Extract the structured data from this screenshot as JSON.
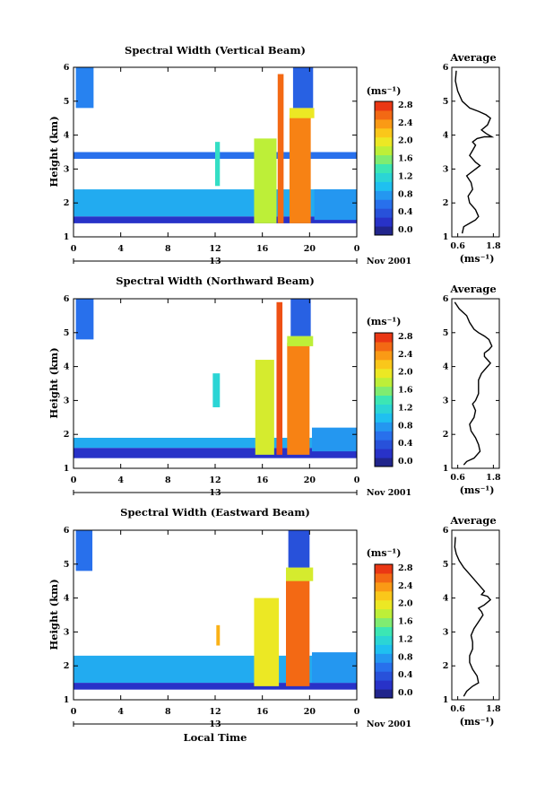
{
  "figure": {
    "time_axis_label": "Local Time",
    "date_tick": "13",
    "date_suffix": "Nov 2001",
    "panels": [
      {
        "title": "Spectral Width (Vertical Beam)",
        "avg_title": "Average"
      },
      {
        "title": "Spectral Width (Northward Beam)",
        "avg_title": "Average"
      },
      {
        "title": "Spectral Width (Eastward Beam)",
        "avg_title": "Average"
      }
    ]
  },
  "chart_data": [
    {
      "type": "heatmap",
      "title": "Spectral Width (Vertical Beam)",
      "xlabel": "",
      "ylabel": "Height (km)",
      "x_ticks": [
        "0",
        "4",
        "8",
        "12",
        "16",
        "20",
        "0"
      ],
      "y_ticks": [
        "1",
        "2",
        "3",
        "4",
        "5",
        "6"
      ],
      "xlim": [
        0,
        24
      ],
      "ylim": [
        1,
        6
      ],
      "colorbar": {
        "unit": "(ms⁻¹)",
        "ticks": [
          "0.0",
          "0.4",
          "0.8",
          "1.2",
          "1.6",
          "2.0",
          "2.4",
          "2.8"
        ],
        "range": [
          0.0,
          3.0
        ],
        "colormap": "jet"
      },
      "regions": [
        {
          "t0": 0,
          "t1": 24,
          "h0": 1.6,
          "h1": 2.4,
          "value": 1.0
        },
        {
          "t0": 0,
          "t1": 24,
          "h0": 1.4,
          "h1": 1.6,
          "value": 0.3
        },
        {
          "t0": 0,
          "t1": 24,
          "h0": 3.3,
          "h1": 3.5,
          "value": 0.7
        },
        {
          "t0": 0.2,
          "t1": 1.7,
          "h0": 4.8,
          "h1": 6.0,
          "value": 0.8
        },
        {
          "t0": 12,
          "t1": 12.4,
          "h0": 2.5,
          "h1": 3.8,
          "value": 1.4
        },
        {
          "t0": 15.3,
          "t1": 17.2,
          "h0": 1.4,
          "h1": 3.9,
          "value": 1.9
        },
        {
          "t0": 17.3,
          "t1": 17.8,
          "h0": 1.4,
          "h1": 5.8,
          "value": 2.7
        },
        {
          "t0": 18.3,
          "t1": 20.1,
          "h0": 1.4,
          "h1": 4.6,
          "value": 2.6
        },
        {
          "t0": 18.3,
          "t1": 20.4,
          "h0": 4.5,
          "h1": 4.8,
          "value": 2.1
        },
        {
          "t0": 18.6,
          "t1": 20.3,
          "h0": 4.8,
          "h1": 6.0,
          "value": 0.6
        },
        {
          "t0": 20.4,
          "t1": 24,
          "h0": 1.5,
          "h1": 2.4,
          "value": 0.9
        }
      ]
    },
    {
      "type": "line",
      "title": "Average",
      "xlabel": "(ms⁻¹)",
      "x_ticks": [
        "0.6",
        "1.8"
      ],
      "xlim": [
        0.4,
        2.0
      ],
      "y_ticks": [
        "1",
        "2",
        "3",
        "4",
        "5",
        "6"
      ],
      "ylim": [
        1,
        6
      ],
      "series": [
        {
          "x": [
            0.75,
            0.8,
            1.0,
            1.2,
            1.3,
            1.2,
            1.0,
            0.95,
            1.1,
            1.05,
            0.9,
            1.2,
            1.35,
            1.2,
            1.0,
            1.1,
            1.2,
            1.1,
            1.25,
            1.5,
            1.75,
            1.55,
            1.4,
            1.6,
            1.7,
            1.55,
            1.3,
            1.0,
            0.75,
            0.6,
            0.52,
            0.55
          ],
          "y": [
            1.1,
            1.3,
            1.4,
            1.5,
            1.6,
            1.8,
            2.0,
            2.2,
            2.4,
            2.6,
            2.8,
            3.0,
            3.1,
            3.2,
            3.4,
            3.55,
            3.7,
            3.8,
            3.9,
            3.95,
            3.95,
            4.05,
            4.15,
            4.3,
            4.5,
            4.6,
            4.7,
            4.8,
            5.0,
            5.3,
            5.6,
            5.9
          ]
        }
      ]
    },
    {
      "type": "heatmap",
      "title": "Spectral Width (Northward Beam)",
      "xlabel": "",
      "ylabel": "Height (km)",
      "x_ticks": [
        "0",
        "4",
        "8",
        "12",
        "16",
        "20",
        "0"
      ],
      "y_ticks": [
        "1",
        "2",
        "3",
        "4",
        "5",
        "6"
      ],
      "xlim": [
        0,
        24
      ],
      "ylim": [
        1,
        6
      ],
      "colorbar": {
        "unit": "(ms⁻¹)",
        "ticks": [
          "0.0",
          "0.4",
          "0.8",
          "1.2",
          "1.6",
          "2.0",
          "2.4",
          "2.8"
        ],
        "range": [
          0.0,
          3.0
        ],
        "colormap": "jet"
      },
      "regions": [
        {
          "t0": 0,
          "t1": 24,
          "h0": 1.6,
          "h1": 1.9,
          "value": 1.0
        },
        {
          "t0": 0,
          "t1": 24,
          "h0": 1.3,
          "h1": 1.6,
          "value": 0.3
        },
        {
          "t0": 0.2,
          "t1": 1.7,
          "h0": 4.8,
          "h1": 6.0,
          "value": 0.7
        },
        {
          "t0": 11.8,
          "t1": 12.4,
          "h0": 2.8,
          "h1": 3.8,
          "value": 1.3
        },
        {
          "t0": 15.4,
          "t1": 17.0,
          "h0": 1.4,
          "h1": 4.2,
          "value": 2.0
        },
        {
          "t0": 17.2,
          "t1": 17.7,
          "h0": 1.4,
          "h1": 5.9,
          "value": 2.8
        },
        {
          "t0": 18.1,
          "t1": 20.0,
          "h0": 1.4,
          "h1": 4.7,
          "value": 2.6
        },
        {
          "t0": 18.1,
          "t1": 20.3,
          "h0": 4.6,
          "h1": 4.9,
          "value": 1.9
        },
        {
          "t0": 18.4,
          "t1": 20.1,
          "h0": 4.9,
          "h1": 6.0,
          "value": 0.6
        },
        {
          "t0": 20.2,
          "t1": 24,
          "h0": 1.5,
          "h1": 2.2,
          "value": 0.9
        }
      ]
    },
    {
      "type": "line",
      "title": "Average",
      "xlabel": "(ms⁻¹)",
      "x_ticks": [
        "0.6",
        "1.8"
      ],
      "xlim": [
        0.4,
        2.0
      ],
      "y_ticks": [
        "1",
        "2",
        "3",
        "4",
        "5",
        "6"
      ],
      "ylim": [
        1,
        6
      ],
      "series": [
        {
          "x": [
            0.8,
            0.9,
            1.15,
            1.35,
            1.3,
            1.2,
            1.05,
            1.0,
            1.15,
            1.2,
            1.1,
            1.2,
            1.3,
            1.3,
            1.3,
            1.4,
            1.55,
            1.7,
            1.6,
            1.5,
            1.5,
            1.65,
            1.75,
            1.65,
            1.5,
            1.3,
            1.15,
            1.0,
            0.9,
            0.65,
            0.5
          ],
          "y": [
            1.1,
            1.2,
            1.3,
            1.5,
            1.7,
            1.9,
            2.1,
            2.3,
            2.5,
            2.7,
            2.9,
            3.0,
            3.2,
            3.4,
            3.6,
            3.8,
            3.95,
            4.1,
            4.2,
            4.3,
            4.4,
            4.5,
            4.6,
            4.8,
            4.9,
            5.0,
            5.1,
            5.3,
            5.5,
            5.7,
            5.9
          ]
        }
      ]
    },
    {
      "type": "heatmap",
      "title": "Spectral Width (Eastward Beam)",
      "xlabel": "Local Time",
      "ylabel": "Height (km)",
      "x_ticks": [
        "0",
        "4",
        "8",
        "12",
        "16",
        "20",
        "0"
      ],
      "y_ticks": [
        "1",
        "2",
        "3",
        "4",
        "5",
        "6"
      ],
      "xlim": [
        0,
        24
      ],
      "ylim": [
        1,
        6
      ],
      "colorbar": {
        "unit": "(ms⁻¹)",
        "ticks": [
          "0.0",
          "0.4",
          "0.8",
          "1.2",
          "1.6",
          "2.0",
          "2.4",
          "2.8"
        ],
        "range": [
          0.0,
          3.0
        ],
        "colormap": "jet"
      },
      "regions": [
        {
          "t0": 0,
          "t1": 24,
          "h0": 1.5,
          "h1": 2.3,
          "value": 1.0
        },
        {
          "t0": 0,
          "t1": 24,
          "h0": 1.3,
          "h1": 1.5,
          "value": 0.3
        },
        {
          "t0": 0.2,
          "t1": 1.6,
          "h0": 4.8,
          "h1": 6.0,
          "value": 0.7
        },
        {
          "t0": 12.1,
          "t1": 12.4,
          "h0": 2.6,
          "h1": 3.2,
          "value": 2.4
        },
        {
          "t0": 15.3,
          "t1": 17.4,
          "h0": 1.4,
          "h1": 4.0,
          "value": 2.1
        },
        {
          "t0": 18.0,
          "t1": 20.0,
          "h0": 1.4,
          "h1": 4.6,
          "value": 2.7
        },
        {
          "t0": 18.0,
          "t1": 20.3,
          "h0": 4.5,
          "h1": 4.9,
          "value": 2.0
        },
        {
          "t0": 18.2,
          "t1": 20.0,
          "h0": 4.9,
          "h1": 6.0,
          "value": 0.5
        },
        {
          "t0": 20.2,
          "t1": 24,
          "h0": 1.5,
          "h1": 2.4,
          "value": 0.9
        }
      ]
    },
    {
      "type": "line",
      "title": "Average",
      "xlabel": "(ms⁻¹)",
      "x_ticks": [
        "0.6",
        "1.8"
      ],
      "xlim": [
        0.4,
        2.0
      ],
      "y_ticks": [
        "1",
        "2",
        "3",
        "4",
        "5",
        "6"
      ],
      "ylim": [
        1,
        6
      ],
      "series": [
        {
          "x": [
            0.8,
            0.9,
            1.1,
            1.3,
            1.25,
            1.1,
            1.0,
            1.0,
            1.1,
            1.1,
            1.05,
            1.15,
            1.3,
            1.45,
            1.4,
            1.3,
            1.5,
            1.7,
            1.6,
            1.4,
            1.5,
            1.35,
            1.2,
            1.0,
            0.8,
            0.65,
            0.55,
            0.5,
            0.52
          ],
          "y": [
            1.1,
            1.25,
            1.4,
            1.5,
            1.7,
            1.9,
            2.1,
            2.3,
            2.5,
            2.7,
            2.9,
            3.1,
            3.3,
            3.5,
            3.6,
            3.7,
            3.8,
            3.95,
            4.05,
            4.1,
            4.2,
            4.35,
            4.5,
            4.7,
            4.9,
            5.1,
            5.3,
            5.5,
            5.8
          ]
        }
      ]
    }
  ]
}
